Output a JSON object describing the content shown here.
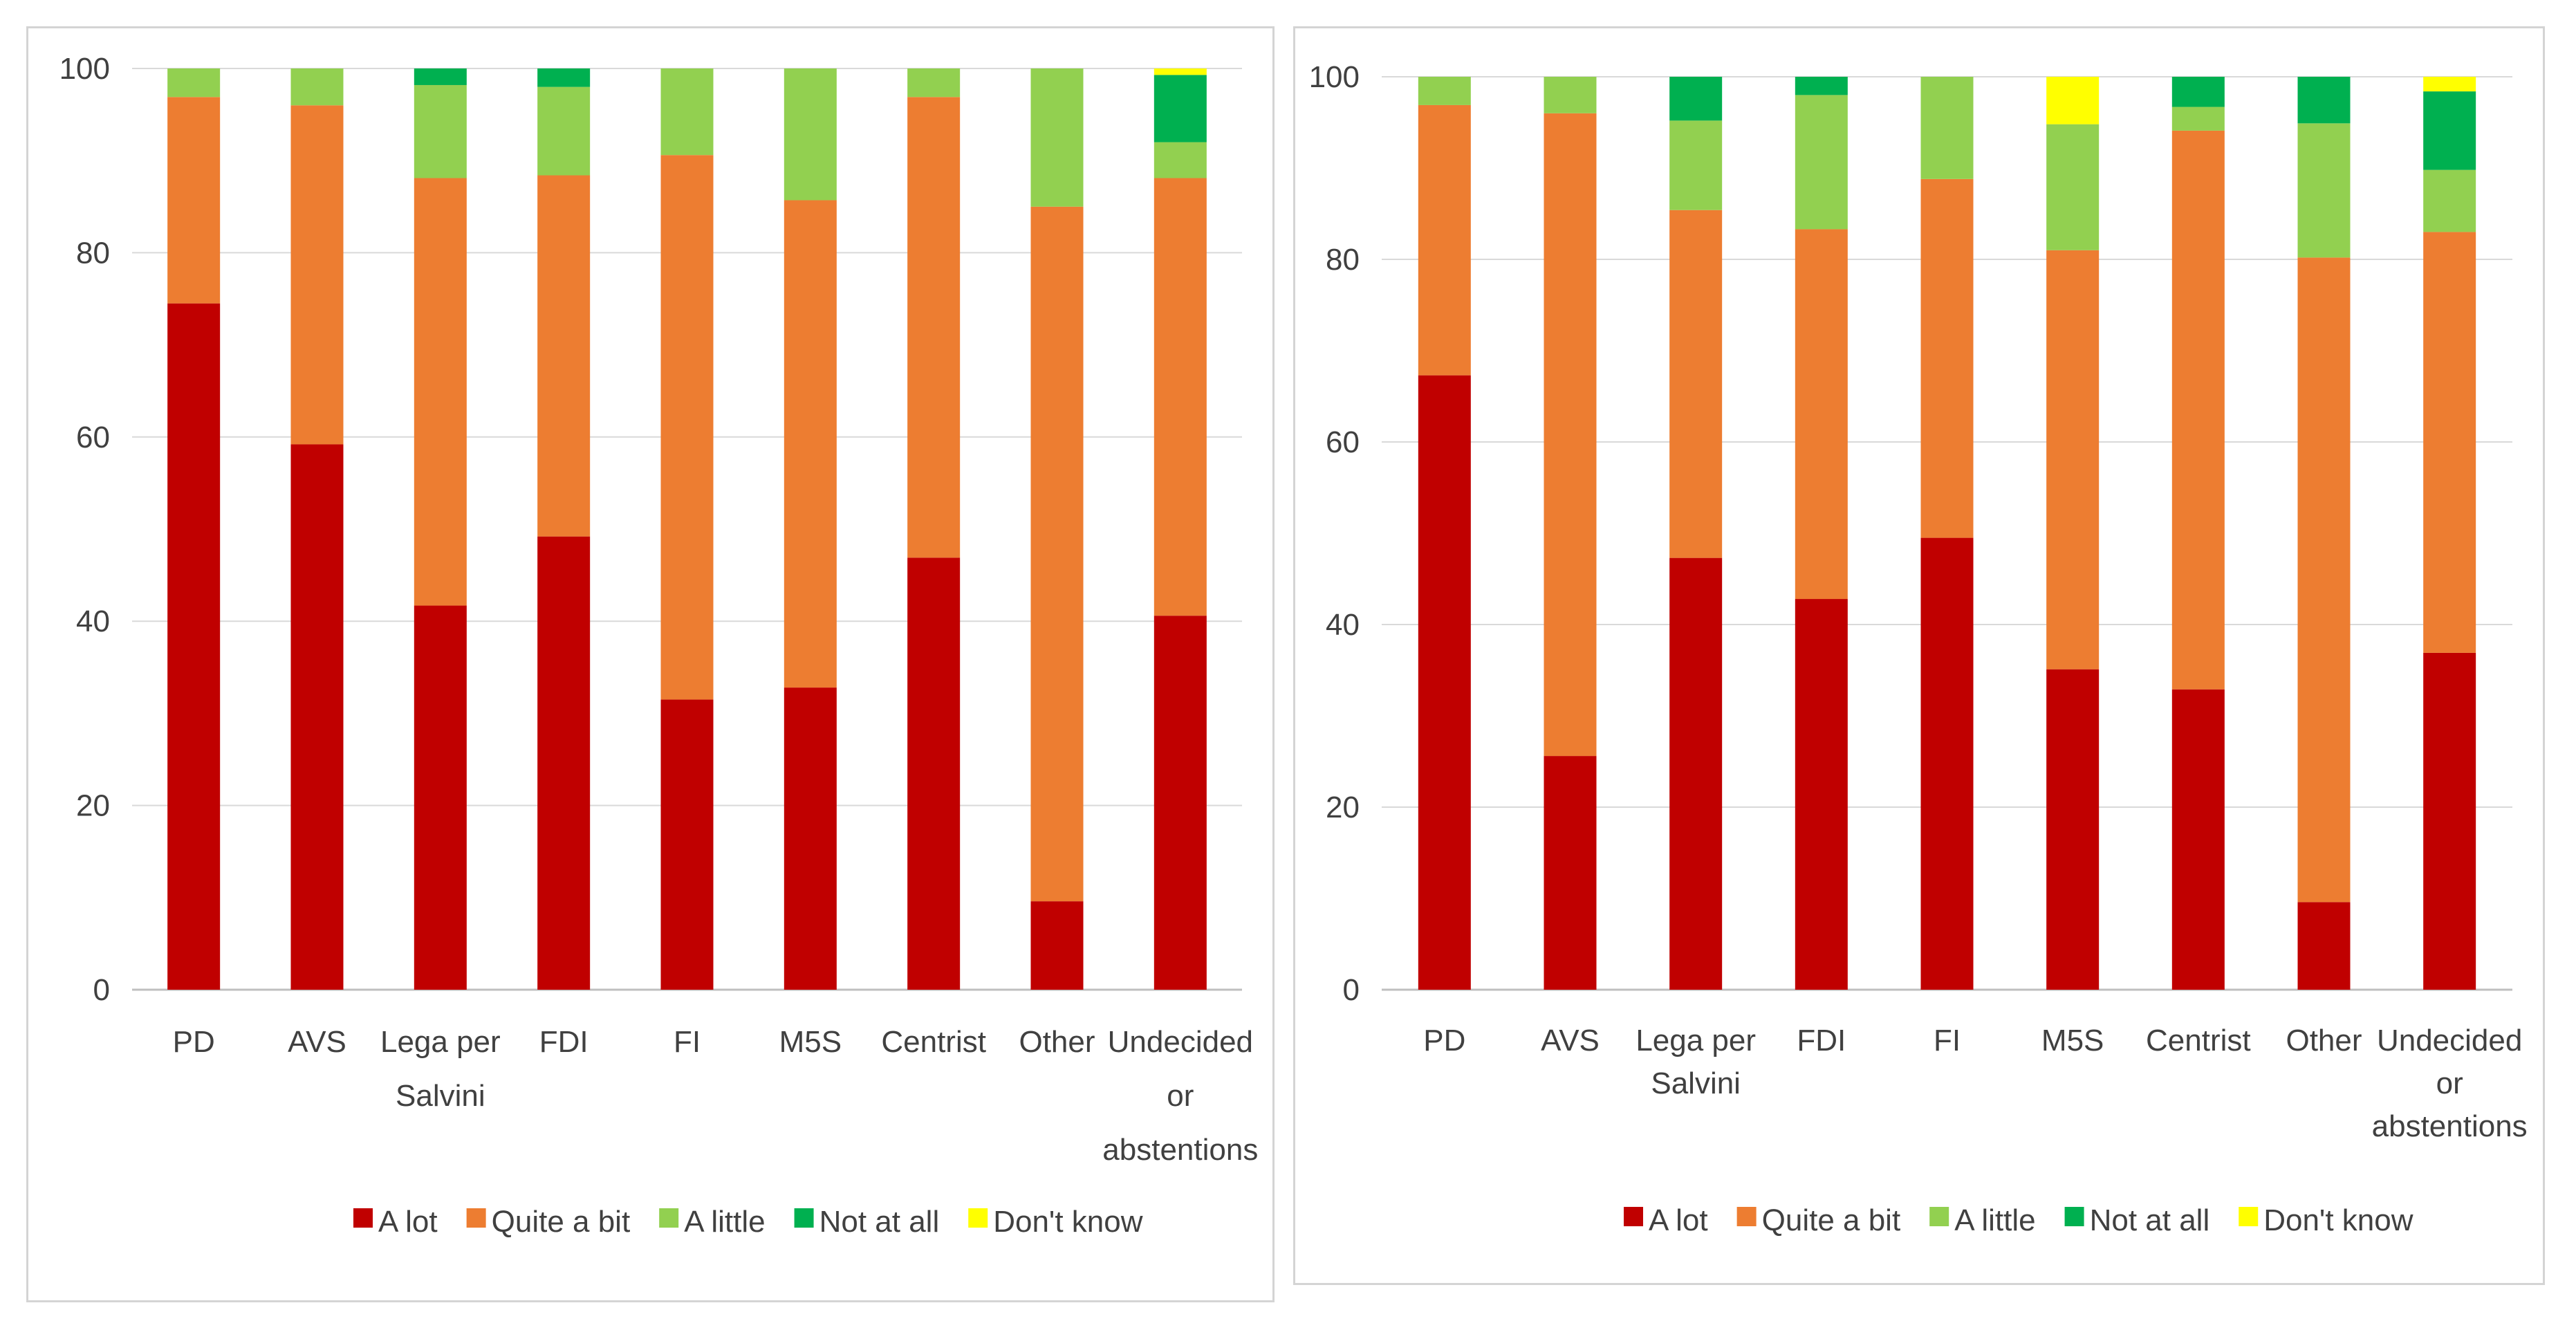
{
  "chart_data": [
    {
      "type": "bar",
      "stacked": true,
      "title": "",
      "xlabel": "",
      "ylabel": "",
      "ylim": [
        0,
        100
      ],
      "yticks": [
        0,
        20,
        40,
        60,
        80,
        100
      ],
      "grid": "horizontal",
      "legend_position": "bottom",
      "categories": [
        "PD",
        "AVS",
        "Lega per Salvini",
        "FDI",
        "FI",
        "M5S",
        "Centrist",
        "Other",
        "Undecided or abstentions"
      ],
      "category_lines": [
        [
          "PD"
        ],
        [
          "AVS"
        ],
        [
          "Lega per",
          "Salvini"
        ],
        [
          "FDI"
        ],
        [
          "FI"
        ],
        [
          "M5S"
        ],
        [
          "Centrist"
        ],
        [
          "Other"
        ],
        [
          "Undecided",
          "or",
          "abstentions"
        ]
      ],
      "series": [
        {
          "name": "A lot",
          "color": "#c00000",
          "values": [
            74.5,
            59.2,
            41.7,
            49.2,
            31.5,
            32.8,
            46.9,
            9.6,
            40.6
          ]
        },
        {
          "name": "Quite a bit",
          "color": "#ed7d31",
          "values": [
            22.4,
            36.8,
            46.4,
            39.2,
            59.1,
            52.9,
            50.0,
            75.4,
            47.5
          ]
        },
        {
          "name": "A little",
          "color": "#92d050",
          "values": [
            3.1,
            4.0,
            10.1,
            9.6,
            9.4,
            14.3,
            3.1,
            15.0,
            3.9
          ]
        },
        {
          "name": "Not at all",
          "color": "#00b050",
          "values": [
            0,
            0,
            1.8,
            2.0,
            0,
            0,
            0,
            0,
            7.3
          ]
        },
        {
          "name": "Don't know",
          "color": "#ffff00",
          "values": [
            0,
            0,
            0,
            0,
            0,
            0,
            0,
            0,
            0.7
          ]
        }
      ]
    },
    {
      "type": "bar",
      "stacked": true,
      "title": "",
      "xlabel": "",
      "ylabel": "",
      "ylim": [
        0,
        100
      ],
      "yticks": [
        0,
        20,
        40,
        60,
        80,
        100
      ],
      "grid": "horizontal",
      "legend_position": "bottom",
      "categories": [
        "PD",
        "AVS",
        "Lega per Salvini",
        "FDI",
        "FI",
        "M5S",
        "Centrist",
        "Other",
        "Undecided or abstentions"
      ],
      "category_lines": [
        [
          "PD"
        ],
        [
          "AVS"
        ],
        [
          "Lega per",
          "Salvini"
        ],
        [
          "FDI"
        ],
        [
          "FI"
        ],
        [
          "M5S"
        ],
        [
          "Centrist"
        ],
        [
          "Other"
        ],
        [
          "Undecided",
          "or",
          "abstentions"
        ]
      ],
      "series": [
        {
          "name": "A lot",
          "color": "#c00000",
          "values": [
            67.3,
            25.6,
            47.3,
            42.8,
            49.5,
            35.1,
            32.9,
            9.6,
            36.9
          ]
        },
        {
          "name": "Quite a bit",
          "color": "#ed7d31",
          "values": [
            29.6,
            70.4,
            38.1,
            40.5,
            39.3,
            45.9,
            61.2,
            70.6,
            46.1
          ]
        },
        {
          "name": "A little",
          "color": "#92d050",
          "values": [
            3.1,
            4.0,
            9.8,
            14.7,
            11.2,
            13.8,
            2.6,
            14.7,
            6.8
          ]
        },
        {
          "name": "Not at all",
          "color": "#00b050",
          "values": [
            0,
            0,
            4.8,
            2.0,
            0,
            0,
            3.3,
            5.1,
            8.6
          ]
        },
        {
          "name": "Don't know",
          "color": "#ffff00",
          "values": [
            0,
            0,
            0,
            0,
            0,
            5.2,
            0,
            0,
            1.6
          ]
        }
      ]
    }
  ]
}
